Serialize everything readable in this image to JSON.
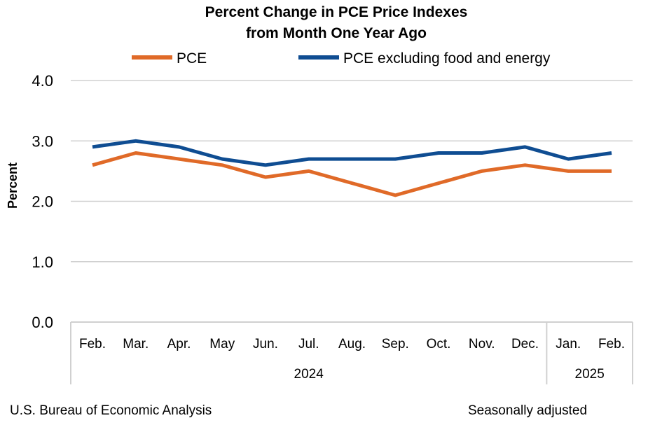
{
  "chart_data": {
    "type": "line",
    "title": "Percent Change in PCE Price Indexes",
    "subtitle": "from Month One Year Ago",
    "ylabel": "Percent",
    "ylim": [
      0,
      4
    ],
    "yticks": [
      "0.0",
      "1.0",
      "2.0",
      "3.0",
      "4.0"
    ],
    "grid": true,
    "legend_position": "top",
    "categories": [
      "Feb.",
      "Mar.",
      "Apr.",
      "May",
      "Jun.",
      "Jul.",
      "Aug.",
      "Sep.",
      "Oct.",
      "Nov.",
      "Dec.",
      "Jan.",
      "Feb."
    ],
    "year_groups": [
      {
        "label": "2024",
        "start": 0,
        "end": 10
      },
      {
        "label": "2025",
        "start": 11,
        "end": 12
      }
    ],
    "series": [
      {
        "name": "PCE",
        "color": "#e06a28",
        "values": [
          2.6,
          2.8,
          2.7,
          2.6,
          2.4,
          2.5,
          2.3,
          2.1,
          2.3,
          2.5,
          2.6,
          2.5,
          2.5
        ]
      },
      {
        "name": "PCE excluding food and energy",
        "color": "#0f4d92",
        "values": [
          2.9,
          3.0,
          2.9,
          2.7,
          2.6,
          2.7,
          2.7,
          2.7,
          2.8,
          2.8,
          2.9,
          2.7,
          2.8
        ]
      }
    ]
  },
  "footer": {
    "source": "U.S. Bureau of Economic Analysis",
    "note": "Seasonally adjusted"
  }
}
